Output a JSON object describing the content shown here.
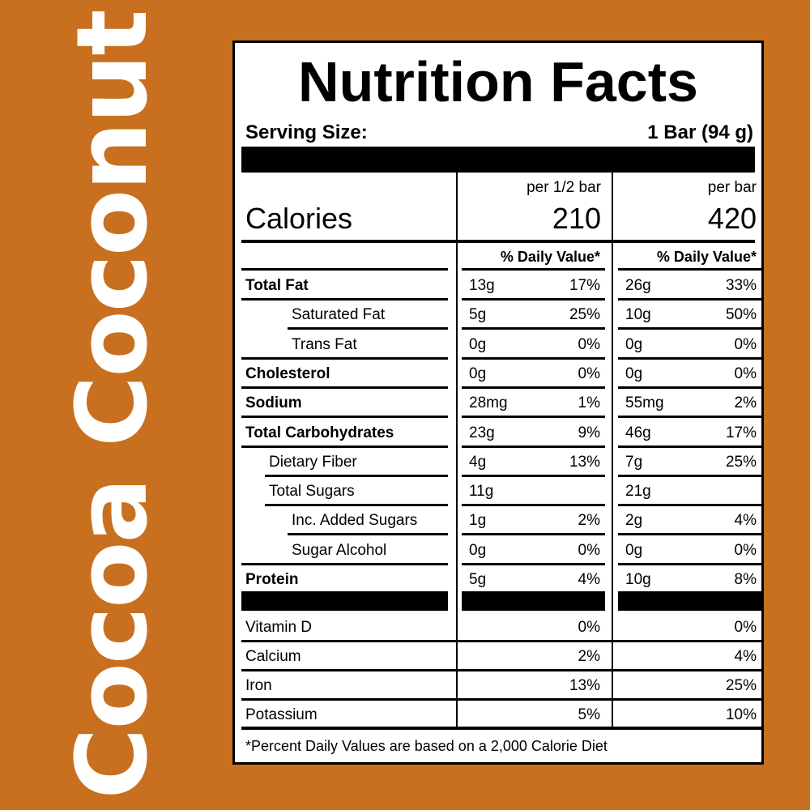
{
  "side_title": "Cocoa Coconut",
  "panel": {
    "title": "Nutrition Facts",
    "serving_size_label": "Serving Size:",
    "serving_size_value": "1 Bar (94 g)",
    "calories_label": "Calories",
    "col1_header": "per 1/2 bar",
    "col2_header": "per bar",
    "col1_calories": "210",
    "col2_calories": "420",
    "dv_header": "% Daily Value*",
    "rows": [
      {
        "name": "Total Fat",
        "bold": true,
        "indent": 0,
        "a1": "13g",
        "p1": "17%",
        "a2": "26g",
        "p2": "33%"
      },
      {
        "name": "Saturated Fat",
        "bold": false,
        "indent": 2,
        "a1": "5g",
        "p1": "25%",
        "a2": "10g",
        "p2": "50%"
      },
      {
        "name": "Trans Fat",
        "bold": false,
        "indent": 2,
        "a1": "0g",
        "p1": "0%",
        "a2": "0g",
        "p2": "0%"
      },
      {
        "name": "Cholesterol",
        "bold": true,
        "indent": 0,
        "a1": "0g",
        "p1": "0%",
        "a2": "0g",
        "p2": "0%"
      },
      {
        "name": "Sodium",
        "bold": true,
        "indent": 0,
        "a1": "28mg",
        "p1": "1%",
        "a2": "55mg",
        "p2": "2%"
      },
      {
        "name": "Total Carbohydrates",
        "bold": true,
        "indent": 0,
        "a1": "23g",
        "p1": "9%",
        "a2": "46g",
        "p2": "17%"
      },
      {
        "name": "Dietary Fiber",
        "bold": false,
        "indent": 1,
        "a1": "4g",
        "p1": "13%",
        "a2": "7g",
        "p2": "25%"
      },
      {
        "name": "Total Sugars",
        "bold": false,
        "indent": 1,
        "a1": "11g",
        "p1": "",
        "a2": "21g",
        "p2": ""
      },
      {
        "name": "Inc. Added Sugars",
        "bold": false,
        "indent": 2,
        "a1": "1g",
        "p1": "2%",
        "a2": "2g",
        "p2": "4%"
      },
      {
        "name": "Sugar Alcohol",
        "bold": false,
        "indent": 2,
        "a1": "0g",
        "p1": "0%",
        "a2": "0g",
        "p2": "0%"
      },
      {
        "name": "Protein",
        "bold": true,
        "indent": 0,
        "a1": "5g",
        "p1": "4%",
        "a2": "10g",
        "p2": "8%"
      }
    ],
    "vitamins": [
      {
        "name": "Vitamin D",
        "p1": "0%",
        "p2": "0%"
      },
      {
        "name": "Calcium",
        "p1": "2%",
        "p2": "4%"
      },
      {
        "name": "Iron",
        "p1": "13%",
        "p2": "25%"
      },
      {
        "name": "Potassium",
        "p1": "5%",
        "p2": "10%"
      }
    ],
    "footnote": "*Percent Daily Values are based on a 2,000 Calorie Diet"
  }
}
